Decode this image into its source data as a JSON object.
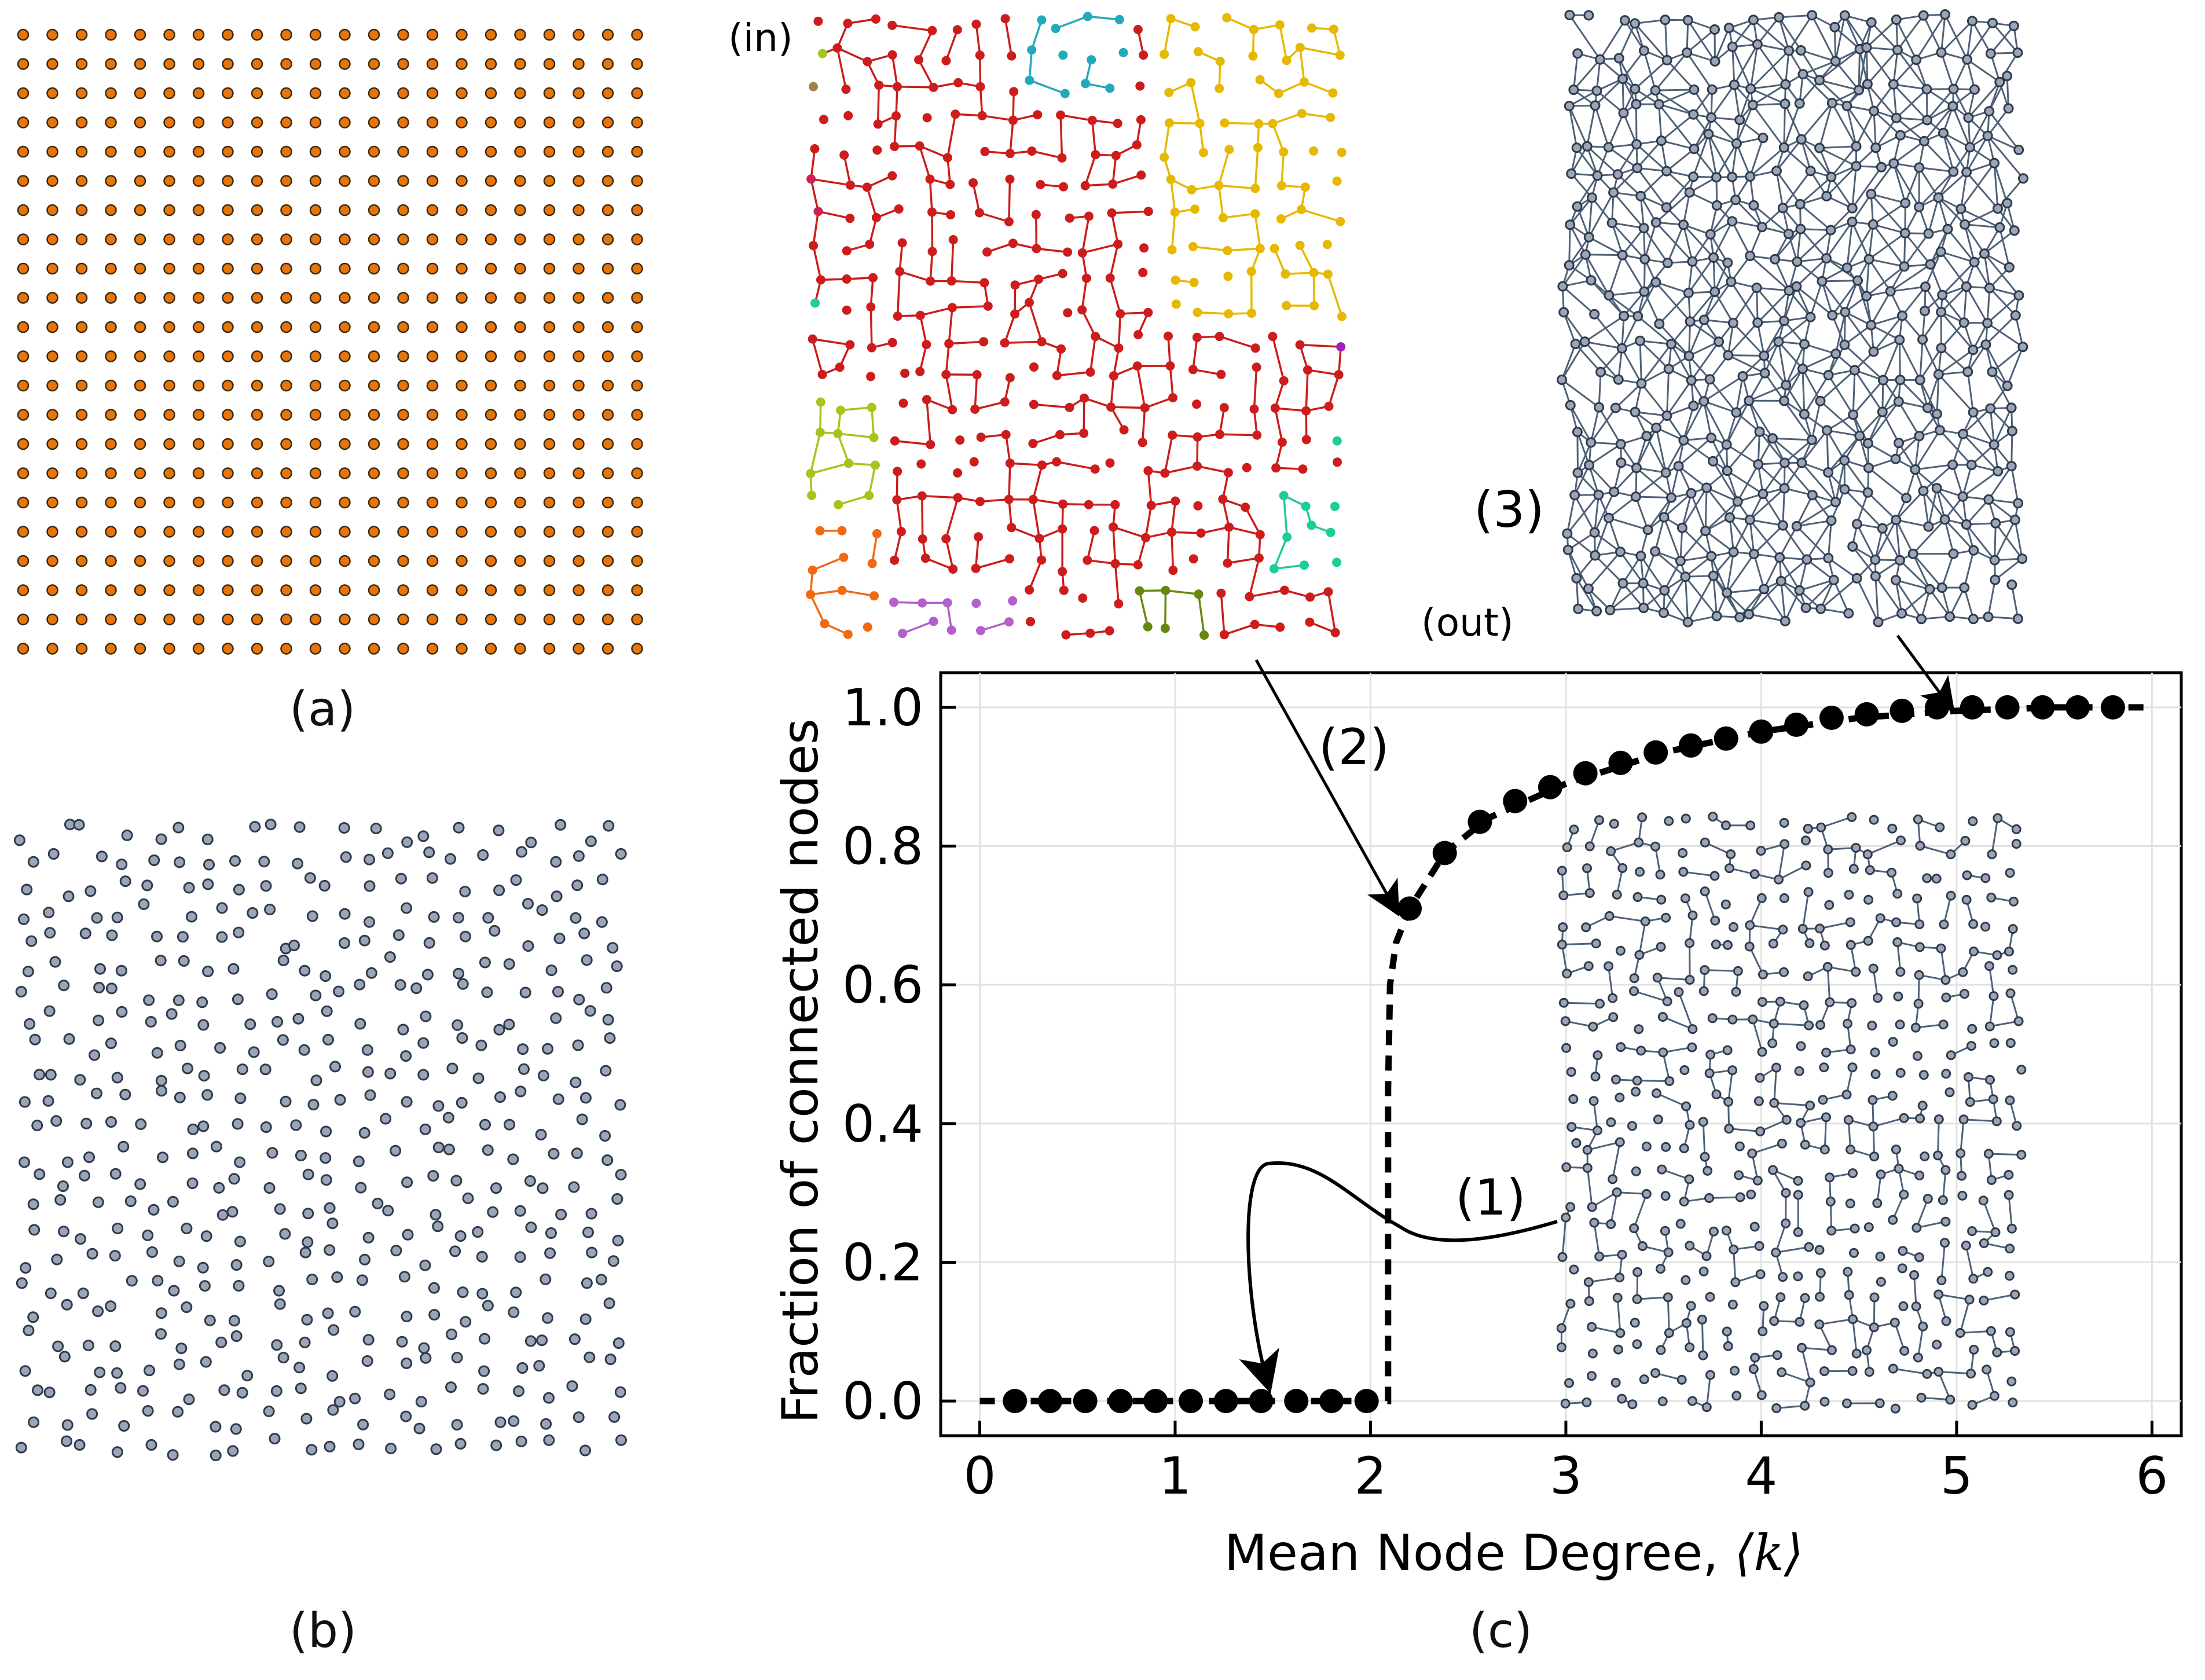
{
  "panels": {
    "a": {
      "caption": "(a)",
      "node_color": "#e8740c",
      "rows": 22,
      "cols": 22
    },
    "b": {
      "caption": "(b)",
      "node_color": "#9aa6b8",
      "count": 480
    },
    "c": {
      "caption": "(c)"
    }
  },
  "insets": {
    "in_label": "(in)",
    "out_label": "(out)",
    "label_1": "(1)",
    "label_2": "(2)",
    "label_3": "(3)",
    "component_colors": [
      "#cc1c1c",
      "#e6b800",
      "#22aabb",
      "#33bb22",
      "#a6c41a",
      "#9b22bb",
      "#ef6a12",
      "#a67e4a",
      "#b35fcc",
      "#668811",
      "#cc2255",
      "#1ccc99"
    ],
    "network_color": "#4f6178"
  },
  "chart_data": {
    "type": "scatter",
    "xlabel_prefix": "Mean Node Degree, ",
    "xlabel_symbol": "⟨k⟩",
    "ylabel": "Fraction of connected nodes",
    "xlim": [
      -0.2,
      6.15
    ],
    "ylim": [
      -0.05,
      1.05
    ],
    "xticks": [
      "0",
      "1",
      "2",
      "3",
      "4",
      "5",
      "6"
    ],
    "yticks": [
      "0.0",
      "0.2",
      "0.4",
      "0.6",
      "0.8",
      "1.0"
    ],
    "grid": true,
    "x": [
      0.18,
      0.36,
      0.54,
      0.72,
      0.9,
      1.08,
      1.26,
      1.44,
      1.62,
      1.8,
      1.98,
      2.2,
      2.38,
      2.56,
      2.74,
      2.92,
      3.1,
      3.28,
      3.46,
      3.64,
      3.82,
      4.0,
      4.18,
      4.36,
      4.54,
      4.72,
      4.9,
      5.08,
      5.26,
      5.44,
      5.62,
      5.8
    ],
    "y": [
      0.0,
      0.0,
      0.0,
      0.0,
      0.0,
      0.0,
      0.0,
      0.0,
      0.0,
      0.0,
      0.0,
      0.71,
      0.79,
      0.835,
      0.865,
      0.885,
      0.905,
      0.92,
      0.935,
      0.945,
      0.955,
      0.965,
      0.975,
      0.985,
      0.99,
      0.995,
      1.0,
      1.0,
      1.0,
      1.0,
      1.0,
      1.0
    ],
    "fit_x": [
      0.0,
      2.09,
      2.09,
      2.1,
      2.13,
      2.2,
      2.38,
      2.6,
      3.0,
      3.5,
      4.0,
      4.5,
      5.0,
      5.5,
      6.0
    ],
    "fit_y": [
      0.0,
      0.0,
      0.45,
      0.6,
      0.66,
      0.71,
      0.79,
      0.84,
      0.89,
      0.935,
      0.965,
      0.985,
      0.995,
      1.0,
      1.0
    ]
  }
}
